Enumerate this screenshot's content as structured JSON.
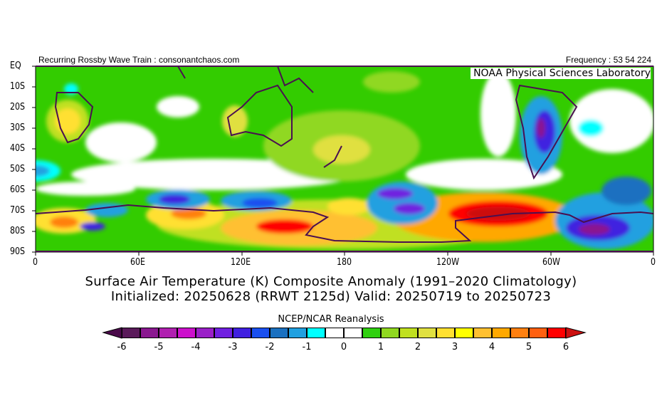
{
  "header": {
    "left": "Recurring Rossby Wave Train : consonantchaos.com",
    "right": "Frequency : 53 54 224",
    "lab": "NOAA Physical Sciences Laboratory"
  },
  "axes": {
    "lat_labels": [
      "EQ",
      "10S",
      "20S",
      "30S",
      "40S",
      "50S",
      "60S",
      "70S",
      "80S",
      "90S"
    ],
    "lon_labels": [
      "0",
      "60E",
      "120E",
      "180",
      "120W",
      "60W",
      "0"
    ]
  },
  "titles": {
    "line1": "Surface Air Temperature (K) Composite Anomaly (1991–2020 Climatology)",
    "line2": "Initialized: 20250628 (RRWT 2125d) Valid: 20250719 to 20250723"
  },
  "colorbar": {
    "title": "NCEP/NCAR Reanalysis",
    "min": -6,
    "max": 6,
    "step": 0.5,
    "tick_labels": [
      "-6",
      "-5",
      "-4",
      "-3",
      "-2",
      "-1",
      "0",
      "1",
      "2",
      "3",
      "4",
      "5",
      "6"
    ],
    "colors": [
      "#5a1a5a",
      "#8a1890",
      "#b020b0",
      "#cc10cc",
      "#9a20c8",
      "#7020e0",
      "#4020e0",
      "#1a50f0",
      "#1a70c0",
      "#20a0e0",
      "#00ffff",
      "#ffffff",
      "#ffffff",
      "#30d010",
      "#90d820",
      "#c0e020",
      "#e0e040",
      "#ffe030",
      "#ffff00",
      "#ffc030",
      "#ffa800",
      "#ff8010",
      "#ff6010",
      "#ff0000"
    ],
    "under_color": "#4a0a4a",
    "over_color": "#cc1010"
  }
}
